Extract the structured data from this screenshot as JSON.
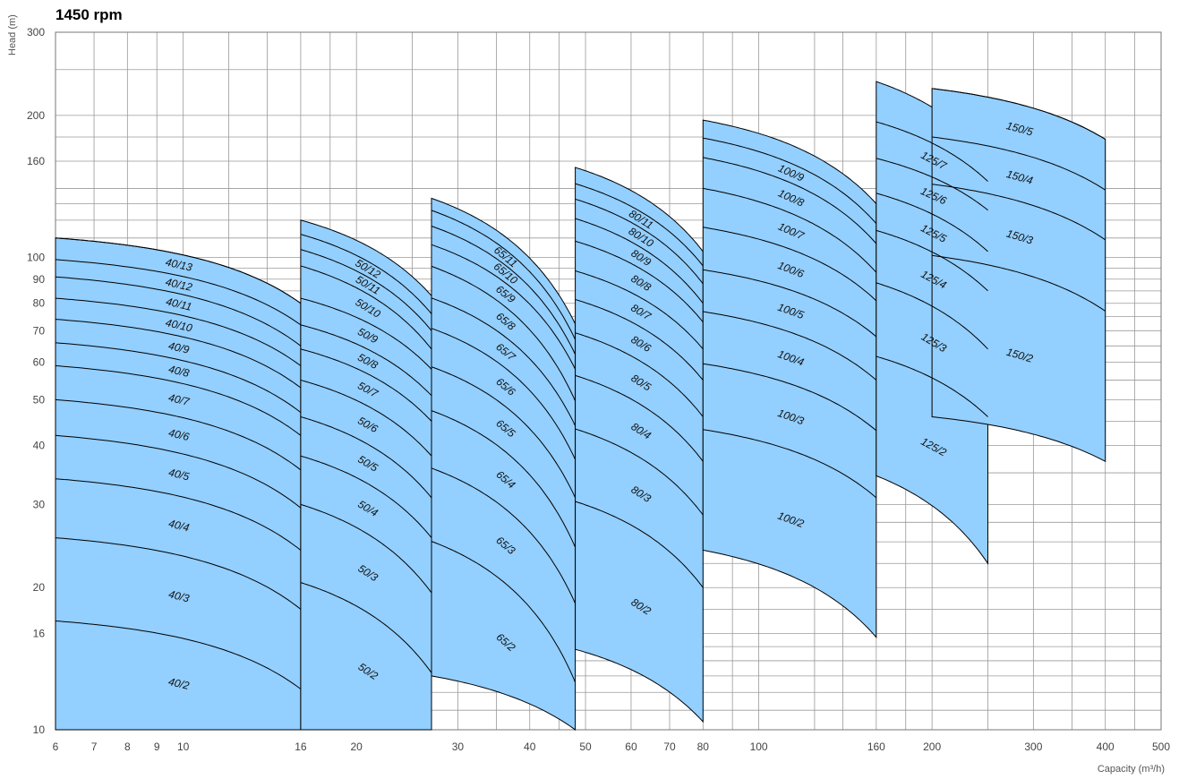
{
  "chart_data": {
    "type": "area",
    "title": "1450 rpm",
    "xlabel": "Capacity (m³/h)",
    "ylabel": "Head (m)",
    "x_scale": "log",
    "y_scale": "log",
    "xlim": [
      6,
      500
    ],
    "ylim": [
      10,
      300
    ],
    "x_ticks": [
      6,
      7,
      8,
      9,
      10,
      16,
      20,
      30,
      40,
      50,
      60,
      70,
      80,
      100,
      160,
      200,
      300,
      400,
      500
    ],
    "y_ticks": [
      10,
      16,
      20,
      30,
      40,
      50,
      60,
      70,
      80,
      90,
      100,
      160,
      200,
      300
    ],
    "grid": true,
    "fill_color": "#93CFFF",
    "line_color": "#000000",
    "groups": [
      {
        "x": [
          6,
          16
        ],
        "region_q": [
          6,
          16
        ],
        "region_bottom": [
          10,
          10
        ],
        "curves": [
          {
            "name": "40/13",
            "head_start": 110,
            "head_end": 80
          },
          {
            "name": "40/12",
            "head_start": 99,
            "head_end": 72
          },
          {
            "name": "40/11",
            "head_start": 91,
            "head_end": 65
          },
          {
            "name": "40/10",
            "head_start": 82,
            "head_end": 59
          },
          {
            "name": "40/9",
            "head_start": 74,
            "head_end": 53
          },
          {
            "name": "40/8",
            "head_start": 66,
            "head_end": 47
          },
          {
            "name": "40/7",
            "head_start": 59,
            "head_end": 42
          },
          {
            "name": "40/6",
            "head_start": 50,
            "head_end": 35.5
          },
          {
            "name": "40/5",
            "head_start": 42,
            "head_end": 29.5
          },
          {
            "name": "40/4",
            "head_start": 34,
            "head_end": 24
          },
          {
            "name": "40/3",
            "head_start": 25.5,
            "head_end": 18
          },
          {
            "name": "40/2",
            "head_start": 17,
            "head_end": 12.2
          }
        ]
      },
      {
        "x": [
          16,
          27
        ],
        "region_q": [
          16,
          27
        ],
        "region_bottom": [
          10,
          10
        ],
        "top_curve": {
          "head_start": 120,
          "head_end": 83
        },
        "curves": [
          {
            "name": "50/12",
            "head_start": 112,
            "head_end": 76
          },
          {
            "name": "50/11",
            "head_start": 104,
            "head_end": 70
          },
          {
            "name": "50/10",
            "head_start": 96,
            "head_end": 64
          },
          {
            "name": "50/9",
            "head_start": 82,
            "head_end": 58
          },
          {
            "name": "50/8",
            "head_start": 72,
            "head_end": 51
          },
          {
            "name": "50/7",
            "head_start": 64,
            "head_end": 45
          },
          {
            "name": "50/6",
            "head_start": 55,
            "head_end": 38
          },
          {
            "name": "50/5",
            "head_start": 46,
            "head_end": 31
          },
          {
            "name": "50/4",
            "head_start": 38,
            "head_end": 25.5
          },
          {
            "name": "50/3",
            "head_start": 30,
            "head_end": 19.5
          },
          {
            "name": "50/2",
            "head_start": 20.5,
            "head_end": 13.2
          }
        ]
      },
      {
        "x": [
          22,
          43
        ],
        "region_q": [
          27,
          48
        ],
        "region_bottom": [
          13,
          10
        ],
        "top_curve": {
          "head_start": 143,
          "head_end": 90
        },
        "curves": [
          {
            "name": "65/11",
            "head_start": 135,
            "head_end": 84
          },
          {
            "name": "65/10",
            "head_start": 125,
            "head_end": 78
          },
          {
            "name": "65/9",
            "head_start": 114,
            "head_end": 72
          },
          {
            "name": "65/8",
            "head_start": 103,
            "head_end": 63
          },
          {
            "name": "65/7",
            "head_start": 88,
            "head_end": 55
          },
          {
            "name": "65/6",
            "head_start": 76,
            "head_end": 47
          },
          {
            "name": "65/5",
            "head_start": 63,
            "head_end": 39
          },
          {
            "name": "65/4",
            "head_start": 51,
            "head_end": 31
          },
          {
            "name": "65/3",
            "head_start": 38.5,
            "head_end": 23.5
          },
          {
            "name": "65/2",
            "head_start": 27,
            "head_end": 16.2
          }
        ]
      },
      {
        "x": [
          36,
          80
        ],
        "region_q": [
          48,
          80
        ],
        "region_bottom": [
          14.8,
          10.4
        ],
        "top_curve": {
          "head_start": 168,
          "head_end": 103
        },
        "curves": [
          {
            "name": "80/11",
            "head_start": 155,
            "head_end": 96
          },
          {
            "name": "80/10",
            "head_start": 144,
            "head_end": 88
          },
          {
            "name": "80/9",
            "head_start": 131,
            "head_end": 80
          },
          {
            "name": "80/8",
            "head_start": 117,
            "head_end": 73
          },
          {
            "name": "80/7",
            "head_start": 101,
            "head_end": 64
          },
          {
            "name": "80/6",
            "head_start": 88,
            "head_end": 55
          },
          {
            "name": "80/5",
            "head_start": 75,
            "head_end": 46
          },
          {
            "name": "80/4",
            "head_start": 61,
            "head_end": 37
          },
          {
            "name": "80/3",
            "head_start": 47,
            "head_end": 28.5
          },
          {
            "name": "80/2",
            "head_start": 33,
            "head_end": 20
          }
        ]
      },
      {
        "x": [
          60,
          160
        ],
        "region_q": [
          80,
          160
        ],
        "region_bottom": [
          24,
          15.7
        ],
        "top_curve": {
          "head_start": 205,
          "head_end": 130
        },
        "curves": [
          {
            "name": "100/9",
            "head_start": 188,
            "head_end": 118
          },
          {
            "name": "100/8",
            "head_start": 171,
            "head_end": 107
          },
          {
            "name": "100/7",
            "head_start": 147,
            "head_end": 93
          },
          {
            "name": "100/6",
            "head_start": 121,
            "head_end": 81
          },
          {
            "name": "100/5",
            "head_start": 98,
            "head_end": 68
          },
          {
            "name": "100/4",
            "head_start": 80,
            "head_end": 55
          },
          {
            "name": "100/3",
            "head_start": 62,
            "head_end": 43
          },
          {
            "name": "100/2",
            "head_start": 45,
            "head_end": 31
          }
        ]
      },
      {
        "x": [
          125,
          250
        ],
        "region_q": [
          160,
          250
        ],
        "region_bottom": [
          34.5,
          22.5
        ],
        "top_curve": {
          "head_start": 255,
          "head_end": 165
        },
        "curves": [
          {
            "name": "125/7",
            "head_start": 207,
            "head_end": 145
          },
          {
            "name": "125/6",
            "head_start": 172,
            "head_end": 126
          },
          {
            "name": "125/5",
            "head_start": 146,
            "head_end": 103
          },
          {
            "name": "125/4",
            "head_start": 122,
            "head_end": 85
          },
          {
            "name": "125/3",
            "head_start": 95,
            "head_end": 64
          },
          {
            "name": "125/2",
            "head_start": 66,
            "head_end": 46
          }
        ]
      },
      {
        "x": [
          200,
          400
        ],
        "region_q": [
          200,
          400
        ],
        "region_bottom": [
          46,
          37
        ],
        "curves": [
          {
            "name": "150/5",
            "head_start": 228,
            "head_end": 178
          },
          {
            "name": "150/4",
            "head_start": 180,
            "head_end": 139
          },
          {
            "name": "150/3",
            "head_start": 143,
            "head_end": 109
          },
          {
            "name": "150/2",
            "head_start": 101,
            "head_end": 77
          }
        ]
      }
    ]
  }
}
